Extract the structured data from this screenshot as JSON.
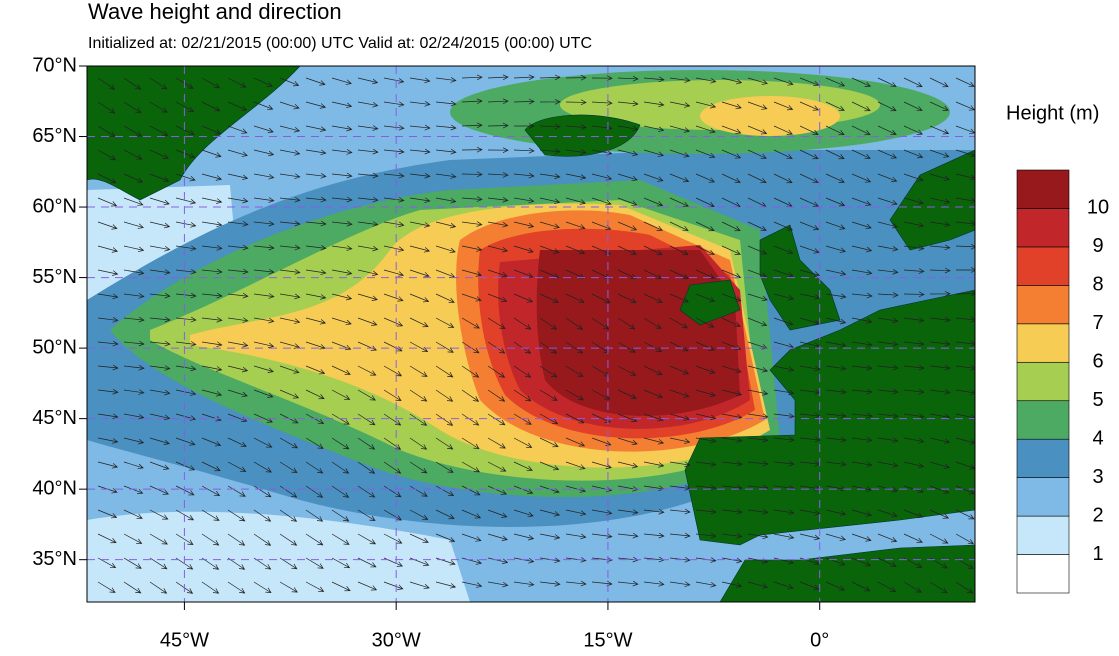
{
  "map": {
    "title": "Wave height and direction",
    "subtitle": "Initialized at: 02/21/2015 (00:00) UTC  Valid at: 02/24/2015 (00:00) UTC",
    "lonlim": [
      -51.9,
      11
    ],
    "latlim": [
      32,
      70
    ],
    "lon_ticks": [
      {
        "value": -45,
        "label": "45°W"
      },
      {
        "value": -30,
        "label": "30°W"
      },
      {
        "value": -15,
        "label": "15°W"
      },
      {
        "value": 0,
        "label": "0°"
      }
    ],
    "lat_ticks": [
      {
        "value": 70,
        "label": "70°N"
      },
      {
        "value": 65,
        "label": "65°N"
      },
      {
        "value": 60,
        "label": "60°N"
      },
      {
        "value": 55,
        "label": "55°N"
      },
      {
        "value": 50,
        "label": "50°N"
      },
      {
        "value": 45,
        "label": "45°N"
      },
      {
        "value": 40,
        "label": "40°N"
      },
      {
        "value": 35,
        "label": "35°N"
      }
    ],
    "colorbar": {
      "title": "Height (m)",
      "levels": [
        1,
        2,
        3,
        4,
        5,
        6,
        7,
        8,
        9,
        10
      ],
      "colors": [
        "#ffffff",
        "#c6e7fa",
        "#7fb9e6",
        "#4a90c0",
        "#4caa63",
        "#a6cf52",
        "#f6cc55",
        "#f47f32",
        "#e04128",
        "#c0262a",
        "#97191c"
      ]
    }
  }
}
